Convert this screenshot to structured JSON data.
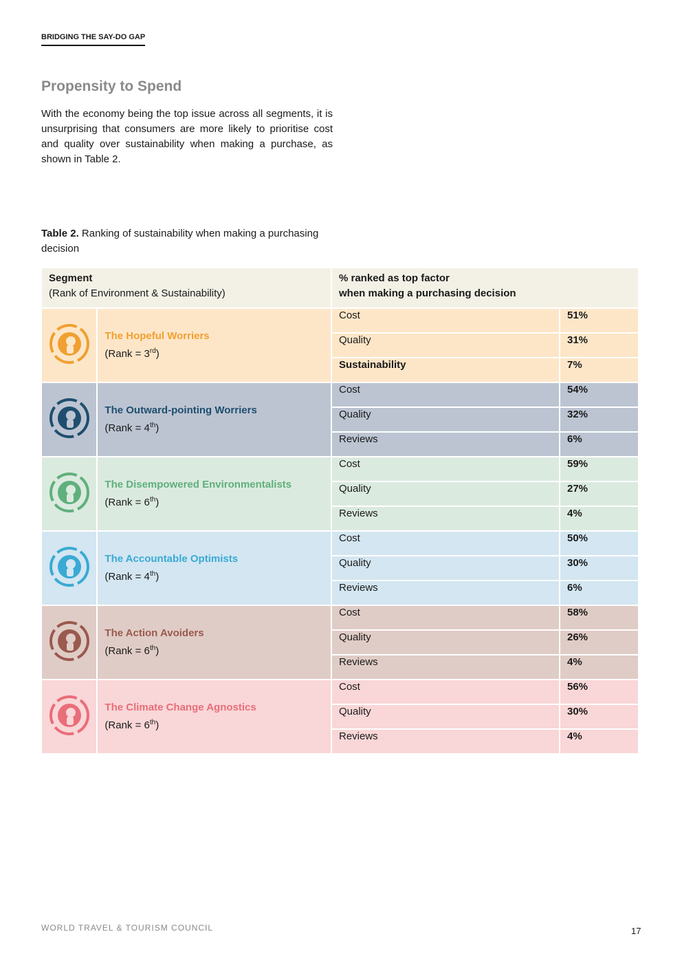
{
  "header": {
    "running_title": "BRIDGING THE SAY-DO GAP"
  },
  "section": {
    "heading": "Propensity to Spend",
    "paragraph": "With the economy being the top issue across all segments, it is unsurprising that consumers are more likely to prioritise cost and quality over sustainability when making a purchase, as shown in Table 2."
  },
  "table": {
    "caption_label": "Table 2.",
    "caption_text": "Ranking of sustainability when making a purchasing decision",
    "header": {
      "segment": "Segment",
      "segment_sub": "(Rank of Environment & Sustainability)",
      "factor": "% ranked as top factor",
      "factor_sub": "when making a purchasing decision"
    },
    "header_background": "#f3f1e6",
    "rows": [
      {
        "name": "The Hopeful Worriers",
        "rank": "(Rank = 3",
        "rank_sup": "rd",
        "rank_end": ")",
        "color": "#f0a030",
        "background": "#fde6c8",
        "factors": [
          {
            "label": "Cost",
            "value": "51%"
          },
          {
            "label": "Quality",
            "value": "31%"
          },
          {
            "label": "Sustainability",
            "value": "7%",
            "highlight": true
          }
        ]
      },
      {
        "name": "The Outward-pointing Worriers",
        "rank": "(Rank = 4",
        "rank_sup": "th",
        "rank_end": ")",
        "color": "#1f4e6e",
        "background": "#bcc4d2",
        "factors": [
          {
            "label": "Cost",
            "value": "54%"
          },
          {
            "label": "Quality",
            "value": "32%"
          },
          {
            "label": "Reviews",
            "value": "6%"
          }
        ]
      },
      {
        "name": "The Disempowered Environmentalists",
        "rank": "(Rank = 6",
        "rank_sup": "th",
        "rank_end": ")",
        "color": "#5fb07c",
        "background": "#dbeadf",
        "factors": [
          {
            "label": "Cost",
            "value": "59%"
          },
          {
            "label": "Quality",
            "value": "27%"
          },
          {
            "label": "Reviews",
            "value": "4%"
          }
        ]
      },
      {
        "name": "The Accountable Optimists",
        "rank": "(Rank = 4",
        "rank_sup": "th",
        "rank_end": ")",
        "color": "#3aaad4",
        "background": "#d3e6f1",
        "factors": [
          {
            "label": "Cost",
            "value": "50%"
          },
          {
            "label": "Quality",
            "value": "30%"
          },
          {
            "label": "Reviews",
            "value": "6%"
          }
        ]
      },
      {
        "name": "The Action Avoiders",
        "rank": "(Rank = 6",
        "rank_sup": "th",
        "rank_end": ")",
        "color": "#9a5a4e",
        "background": "#e0ccc6",
        "factors": [
          {
            "label": "Cost",
            "value": "58%"
          },
          {
            "label": "Quality",
            "value": "26%"
          },
          {
            "label": "Reviews",
            "value": "4%"
          }
        ]
      },
      {
        "name": "The Climate Change Agnostics",
        "rank": "(Rank = 6",
        "rank_sup": "th",
        "rank_end": ")",
        "color": "#e86e7a",
        "background": "#f9d6d7",
        "factors": [
          {
            "label": "Cost",
            "value": "56%"
          },
          {
            "label": "Quality",
            "value": "30%"
          },
          {
            "label": "Reviews",
            "value": "4%"
          }
        ]
      }
    ]
  },
  "footer": {
    "organization": "WORLD TRAVEL & TOURISM COUNCIL",
    "page_number": "17"
  }
}
